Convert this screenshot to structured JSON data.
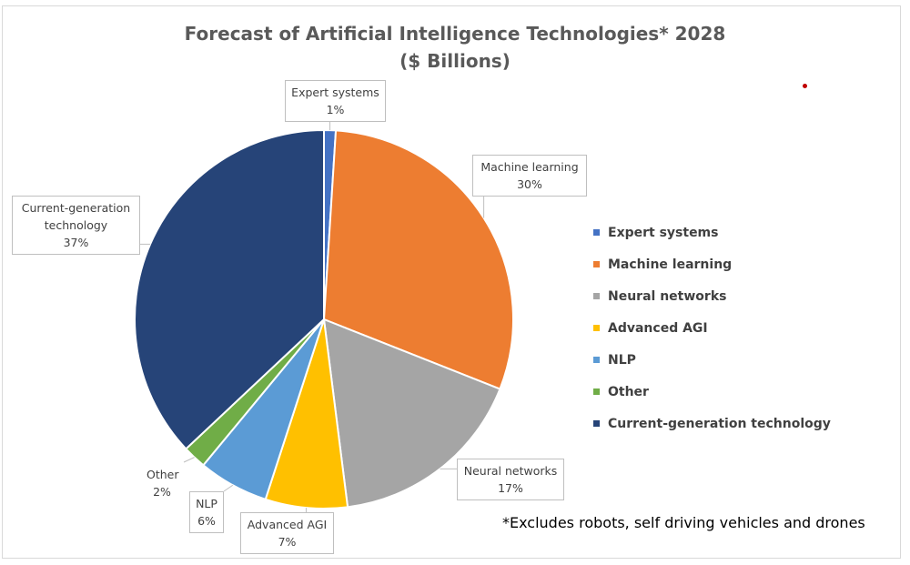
{
  "chart_data": {
    "type": "pie",
    "title": "Forecast of Artificial Intelligence Technologies* 2028",
    "subtitle": "($ Billions)",
    "slices": [
      {
        "name": "Expert systems",
        "label": "1%",
        "value": 1,
        "color": "#4472c4"
      },
      {
        "name": "Machine learning",
        "label": "30%",
        "value": 30,
        "color": "#ed7d31"
      },
      {
        "name": "Neural networks",
        "label": "17%",
        "value": 17,
        "color": "#a5a5a5"
      },
      {
        "name": "Advanced AGI",
        "label": "7%",
        "value": 7,
        "color": "#ffc000"
      },
      {
        "name": "NLP",
        "label": "6%",
        "value": 6,
        "color": "#5b9bd5"
      },
      {
        "name": "Other",
        "label": "2%",
        "value": 2,
        "color": "#70ad47"
      },
      {
        "name": "Current-generation technology",
        "label": "37%",
        "value": 37,
        "color": "#264478"
      }
    ],
    "legend_position": "right",
    "footnote": "*Excludes robots, self driving vehicles and drones"
  },
  "marker_color": "#c00000"
}
